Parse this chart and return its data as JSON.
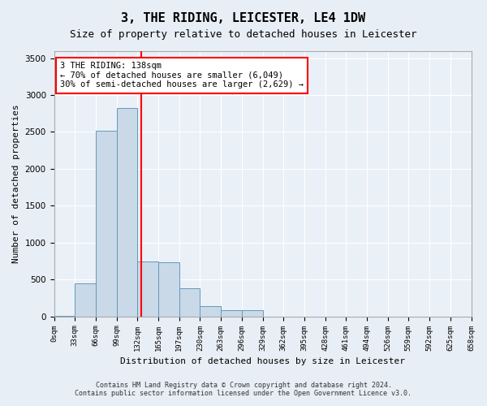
{
  "title": "3, THE RIDING, LEICESTER, LE4 1DW",
  "subtitle": "Size of property relative to detached houses in Leicester",
  "xlabel": "Distribution of detached houses by size in Leicester",
  "ylabel": "Number of detached properties",
  "bar_color": "#c9d9e8",
  "bar_edge_color": "#6699bb",
  "bar_values": [
    5,
    450,
    2520,
    2820,
    750,
    730,
    380,
    140,
    80,
    80,
    0,
    0,
    0,
    0,
    0,
    0,
    0,
    0,
    0,
    0
  ],
  "bin_labels": [
    "0sqm",
    "33sqm",
    "66sqm",
    "99sqm",
    "132sqm",
    "165sqm",
    "197sqm",
    "230sqm",
    "263sqm",
    "296sqm",
    "329sqm",
    "362sqm",
    "395sqm",
    "428sqm",
    "461sqm",
    "494sqm",
    "526sqm",
    "559sqm",
    "592sqm",
    "625sqm",
    "658sqm"
  ],
  "property_line_x": 4.18,
  "annotation_text": "3 THE RIDING: 138sqm\n← 70% of detached houses are smaller (6,049)\n30% of semi-detached houses are larger (2,629) →",
  "annotation_box_color": "white",
  "annotation_box_edge_color": "red",
  "vline_color": "red",
  "ylim": [
    0,
    3600
  ],
  "yticks": [
    0,
    500,
    1000,
    1500,
    2000,
    2500,
    3000,
    3500
  ],
  "footer_line1": "Contains HM Land Registry data © Crown copyright and database right 2024.",
  "footer_line2": "Contains public sector information licensed under the Open Government Licence v3.0.",
  "bg_color": "#e8eef5",
  "plot_bg_color": "#eaf0f7"
}
